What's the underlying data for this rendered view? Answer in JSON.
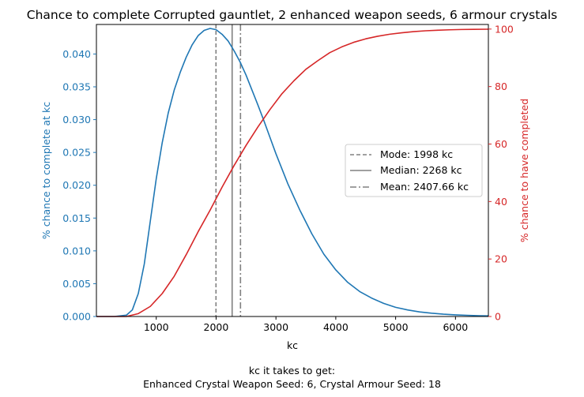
{
  "chart_data": {
    "type": "line",
    "title": "Chance to complete Corrupted gauntlet, 2 enhanced weapon seeds, 6 armour crystals",
    "xlabel": "kc",
    "ylabel_left": "% chance to complete at kc",
    "ylabel_right": "% chance to have completed",
    "xlim": [
      0,
      6550
    ],
    "ylim_left": [
      0,
      0.0445
    ],
    "ylim_right": [
      0,
      101.6
    ],
    "x_ticks": [
      1000,
      2000,
      3000,
      4000,
      5000,
      6000
    ],
    "y_left_ticks": [
      "0.000",
      "0.005",
      "0.010",
      "0.015",
      "0.020",
      "0.025",
      "0.030",
      "0.035",
      "0.040"
    ],
    "y_right_ticks": [
      0,
      20,
      40,
      60,
      80,
      100
    ],
    "colors": {
      "left_axis": "#1f77b4",
      "right_axis": "#d62728",
      "reference_lines": "#808080"
    },
    "series": [
      {
        "axis": "left",
        "color": "#1f77b4",
        "x": [
          0,
          300,
          500,
          600,
          700,
          800,
          900,
          1000,
          1100,
          1200,
          1300,
          1400,
          1500,
          1600,
          1700,
          1800,
          1900,
          2000,
          2100,
          2200,
          2300,
          2400,
          2500,
          2600,
          2700,
          2800,
          2900,
          3000,
          3200,
          3400,
          3600,
          3800,
          4000,
          4200,
          4400,
          4600,
          4800,
          5000,
          5200,
          5400,
          5600,
          5800,
          6000,
          6200,
          6400,
          6550
        ],
        "y": [
          0,
          0,
          0.0002,
          0.001,
          0.0035,
          0.008,
          0.0145,
          0.021,
          0.0265,
          0.031,
          0.0345,
          0.0372,
          0.0395,
          0.0414,
          0.0428,
          0.0436,
          0.0439,
          0.0437,
          0.043,
          0.042,
          0.0405,
          0.0388,
          0.0368,
          0.0345,
          0.0322,
          0.0298,
          0.0273,
          0.0248,
          0.0202,
          0.0162,
          0.0126,
          0.0095,
          0.0071,
          0.0052,
          0.0038,
          0.0028,
          0.002,
          0.0014,
          0.001,
          0.0007,
          0.0005,
          0.00035,
          0.00025,
          0.00018,
          0.00012,
          0.0001
        ]
      },
      {
        "axis": "right",
        "color": "#d62728",
        "x": [
          0,
          500,
          700,
          900,
          1100,
          1300,
          1500,
          1700,
          1900,
          2100,
          2300,
          2500,
          2700,
          2900,
          3100,
          3300,
          3500,
          3700,
          3900,
          4100,
          4300,
          4500,
          4700,
          4900,
          5100,
          5300,
          5500,
          5700,
          5900,
          6100,
          6300,
          6550
        ],
        "y": [
          0,
          0,
          1,
          3.5,
          8,
          14,
          21.5,
          29.5,
          37,
          45,
          52.5,
          59.5,
          66,
          72,
          77.5,
          82,
          86,
          89,
          91.8,
          93.8,
          95.4,
          96.6,
          97.5,
          98.2,
          98.7,
          99.1,
          99.4,
          99.6,
          99.75,
          99.85,
          99.9,
          99.95
        ]
      }
    ],
    "reference_lines": [
      {
        "label": "Mode: 1998 kc",
        "x": 1998,
        "style": "dashed"
      },
      {
        "label": "Median: 2268 kc",
        "x": 2268,
        "style": "solid"
      },
      {
        "label": "Mean: 2407.66 kc",
        "x": 2407.66,
        "style": "dashdot"
      }
    ],
    "legend_placement": "center-right",
    "caption_lines": [
      "kc it takes to get:",
      "Enhanced Crystal Weapon Seed: 6,  Crystal Armour Seed: 18"
    ]
  }
}
